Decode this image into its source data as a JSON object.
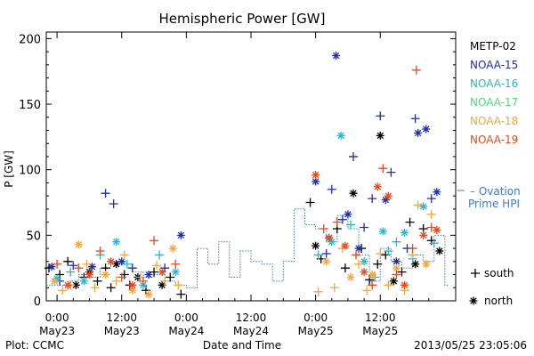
{
  "chart_data": {
    "type": "scatter",
    "title": "Hemispheric Power [GW]",
    "xlabel": "Date and Time",
    "ylabel": "P [GW]",
    "footer_left": "Plot: CCMC",
    "footer_right": "2013/05/25 23:05:06",
    "x_unit": "hours since 2013-05-23 00:00 UT",
    "xlim": [
      -2,
      74
    ],
    "ylim": [
      0,
      205
    ],
    "yticks": [
      0,
      50,
      100,
      150,
      200
    ],
    "xticks": [
      {
        "x": 0,
        "time": "0:00",
        "date": "May23"
      },
      {
        "x": 12,
        "time": "12:00",
        "date": "May23"
      },
      {
        "x": 24,
        "time": "0:00",
        "date": "May24"
      },
      {
        "x": 36,
        "time": "12:00",
        "date": "May24"
      },
      {
        "x": 48,
        "time": "0:00",
        "date": "May25"
      },
      {
        "x": 60,
        "time": "12:00",
        "date": "May25"
      }
    ],
    "series": [
      {
        "name": "METP-02",
        "color": "#000000",
        "points": [
          {
            "x": -1.5,
            "y": 25,
            "h": "s"
          },
          {
            "x": 0.5,
            "y": 20,
            "h": "s"
          },
          {
            "x": 2,
            "y": 30,
            "h": "s"
          },
          {
            "x": 3.5,
            "y": 12,
            "h": "n"
          },
          {
            "x": 5,
            "y": 18,
            "h": "s"
          },
          {
            "x": 6,
            "y": 22,
            "h": "n"
          },
          {
            "x": 7.5,
            "y": 15,
            "h": "s"
          },
          {
            "x": 9,
            "y": 25,
            "h": "s"
          },
          {
            "x": 10,
            "y": 10,
            "h": "s"
          },
          {
            "x": 11,
            "y": 28,
            "h": "n"
          },
          {
            "x": 12.5,
            "y": 20,
            "h": "s"
          },
          {
            "x": 13.5,
            "y": 12,
            "h": "s"
          },
          {
            "x": 15,
            "y": 18,
            "h": "n"
          },
          {
            "x": 16.5,
            "y": 8,
            "h": "s"
          },
          {
            "x": 18,
            "y": 22,
            "h": "s"
          },
          {
            "x": 19.5,
            "y": 12,
            "h": "n"
          },
          {
            "x": 21,
            "y": 18,
            "h": "s"
          },
          {
            "x": 23,
            "y": 5,
            "h": "s"
          },
          {
            "x": 47,
            "y": 75,
            "h": "s"
          },
          {
            "x": 48,
            "y": 42,
            "h": "n"
          },
          {
            "x": 49,
            "y": 32,
            "h": "s"
          },
          {
            "x": 50.5,
            "y": 48,
            "h": "n"
          },
          {
            "x": 52,
            "y": 55,
            "h": "s"
          },
          {
            "x": 53.5,
            "y": 25,
            "h": "s"
          },
          {
            "x": 55,
            "y": 82,
            "h": "n"
          },
          {
            "x": 56.5,
            "y": 40,
            "h": "s"
          },
          {
            "x": 58,
            "y": 16,
            "h": "s"
          },
          {
            "x": 59.5,
            "y": 28,
            "h": "s"
          },
          {
            "x": 60,
            "y": 126,
            "h": "n"
          },
          {
            "x": 61,
            "y": 35,
            "h": "s"
          },
          {
            "x": 62.5,
            "y": 15,
            "h": "n"
          },
          {
            "x": 64,
            "y": 22,
            "h": "s"
          },
          {
            "x": 65.5,
            "y": 60,
            "h": "s"
          },
          {
            "x": 66.5,
            "y": 28,
            "h": "n"
          },
          {
            "x": 68,
            "y": 55,
            "h": "s"
          },
          {
            "x": 69.5,
            "y": 46,
            "h": "s"
          },
          {
            "x": 71,
            "y": 38,
            "h": "n"
          }
        ]
      },
      {
        "name": "NOAA-15",
        "color": "#1f2db0",
        "points": [
          {
            "x": -1,
            "y": 26,
            "h": "n"
          },
          {
            "x": 0.5,
            "y": 15,
            "h": "s"
          },
          {
            "x": 3,
            "y": 27,
            "h": "s"
          },
          {
            "x": 6.5,
            "y": 26,
            "h": "n"
          },
          {
            "x": 9,
            "y": 82,
            "h": "s"
          },
          {
            "x": 10.5,
            "y": 74,
            "h": "s"
          },
          {
            "x": 12,
            "y": 30,
            "h": "n"
          },
          {
            "x": 14,
            "y": 25,
            "h": "s"
          },
          {
            "x": 17,
            "y": 20,
            "h": "n"
          },
          {
            "x": 20,
            "y": 25,
            "h": "s"
          },
          {
            "x": 23,
            "y": 50,
            "h": "n"
          },
          {
            "x": 48,
            "y": 91,
            "h": "n"
          },
          {
            "x": 50,
            "y": 36,
            "h": "s"
          },
          {
            "x": 51,
            "y": 85,
            "h": "s"
          },
          {
            "x": 51.8,
            "y": 187,
            "h": "n"
          },
          {
            "x": 53,
            "y": 62,
            "h": "s"
          },
          {
            "x": 54,
            "y": 66,
            "h": "n"
          },
          {
            "x": 55,
            "y": 110,
            "h": "s"
          },
          {
            "x": 56,
            "y": 40,
            "h": "n"
          },
          {
            "x": 57,
            "y": 56,
            "h": "s"
          },
          {
            "x": 58.5,
            "y": 78,
            "h": "s"
          },
          {
            "x": 60,
            "y": 141,
            "h": "s"
          },
          {
            "x": 61,
            "y": 77,
            "h": "n"
          },
          {
            "x": 62,
            "y": 98,
            "h": "s"
          },
          {
            "x": 63,
            "y": 30,
            "h": "n"
          },
          {
            "x": 65,
            "y": 40,
            "h": "s"
          },
          {
            "x": 66.5,
            "y": 139,
            "h": "s"
          },
          {
            "x": 67,
            "y": 128,
            "h": "n"
          },
          {
            "x": 68.5,
            "y": 131,
            "h": "n"
          },
          {
            "x": 69.5,
            "y": 78,
            "h": "s"
          },
          {
            "x": 70.5,
            "y": 83,
            "h": "n"
          }
        ]
      },
      {
        "name": "NOAA-16",
        "color": "#22b8d6",
        "points": [
          {
            "x": 0,
            "y": 17,
            "h": "n"
          },
          {
            "x": 2.5,
            "y": 22,
            "h": "s"
          },
          {
            "x": 5,
            "y": 15,
            "h": "n"
          },
          {
            "x": 8,
            "y": 35,
            "h": "s"
          },
          {
            "x": 11,
            "y": 45,
            "h": "n"
          },
          {
            "x": 13,
            "y": 28,
            "h": "s"
          },
          {
            "x": 16,
            "y": 12,
            "h": "n"
          },
          {
            "x": 19,
            "y": 35,
            "h": "s"
          },
          {
            "x": 22,
            "y": 22,
            "h": "n"
          },
          {
            "x": 48.5,
            "y": 35,
            "h": "s"
          },
          {
            "x": 51,
            "y": 45,
            "h": "n"
          },
          {
            "x": 52.7,
            "y": 126,
            "h": "n"
          },
          {
            "x": 54.5,
            "y": 58,
            "h": "s"
          },
          {
            "x": 57,
            "y": 30,
            "h": "n"
          },
          {
            "x": 59,
            "y": 18,
            "h": "s"
          },
          {
            "x": 60.5,
            "y": 53,
            "h": "n"
          },
          {
            "x": 61.5,
            "y": 38,
            "h": "s"
          },
          {
            "x": 63,
            "y": 45,
            "h": "s"
          },
          {
            "x": 64.5,
            "y": 52,
            "h": "n"
          },
          {
            "x": 66,
            "y": 32,
            "h": "s"
          },
          {
            "x": 68,
            "y": 72,
            "h": "n"
          },
          {
            "x": 70,
            "y": 44,
            "h": "s"
          }
        ]
      },
      {
        "name": "NOAA-17",
        "color": "#4be07d",
        "points": []
      },
      {
        "name": "NOAA-18",
        "color": "#f5a640",
        "points": [
          {
            "x": -0.5,
            "y": 15,
            "h": "n"
          },
          {
            "x": 1,
            "y": 8,
            "h": "s"
          },
          {
            "x": 2.5,
            "y": 12,
            "h": "s"
          },
          {
            "x": 4,
            "y": 43,
            "h": "n"
          },
          {
            "x": 5.5,
            "y": 28,
            "h": "s"
          },
          {
            "x": 7,
            "y": 10,
            "h": "s"
          },
          {
            "x": 9,
            "y": 20,
            "h": "n"
          },
          {
            "x": 11,
            "y": 15,
            "h": "s"
          },
          {
            "x": 12.5,
            "y": 35,
            "h": "s"
          },
          {
            "x": 14,
            "y": 8,
            "h": "n"
          },
          {
            "x": 15.5,
            "y": 18,
            "h": "s"
          },
          {
            "x": 17,
            "y": 5,
            "h": "n"
          },
          {
            "x": 18.5,
            "y": 27,
            "h": "s"
          },
          {
            "x": 20,
            "y": 15,
            "h": "s"
          },
          {
            "x": 21.5,
            "y": 40,
            "h": "n"
          },
          {
            "x": 22.5,
            "y": 12,
            "h": "s"
          },
          {
            "x": 48.5,
            "y": 7,
            "h": "s"
          },
          {
            "x": 50,
            "y": 30,
            "h": "n"
          },
          {
            "x": 51.5,
            "y": 10,
            "h": "s"
          },
          {
            "x": 53,
            "y": 40,
            "h": "s"
          },
          {
            "x": 54.5,
            "y": 18,
            "h": "n"
          },
          {
            "x": 56,
            "y": 28,
            "h": "s"
          },
          {
            "x": 57.5,
            "y": 8,
            "h": "s"
          },
          {
            "x": 58.5,
            "y": 20,
            "h": "n"
          },
          {
            "x": 60,
            "y": 36,
            "h": "s"
          },
          {
            "x": 61.5,
            "y": 12,
            "h": "s"
          },
          {
            "x": 63,
            "y": 25,
            "h": "n"
          },
          {
            "x": 64.5,
            "y": 8,
            "h": "s"
          },
          {
            "x": 66,
            "y": 35,
            "h": "s"
          },
          {
            "x": 67,
            "y": 73,
            "h": "s"
          },
          {
            "x": 68.5,
            "y": 28,
            "h": "n"
          },
          {
            "x": 69.5,
            "y": 66,
            "h": "s"
          }
        ]
      },
      {
        "name": "NOAA-19",
        "color": "#e8481e",
        "points": [
          {
            "x": 0,
            "y": 28,
            "h": "s"
          },
          {
            "x": 2,
            "y": 12,
            "h": "n"
          },
          {
            "x": 4,
            "y": 25,
            "h": "s"
          },
          {
            "x": 6,
            "y": 20,
            "h": "n"
          },
          {
            "x": 8,
            "y": 38,
            "h": "s"
          },
          {
            "x": 10,
            "y": 30,
            "h": "n"
          },
          {
            "x": 12,
            "y": 18,
            "h": "s"
          },
          {
            "x": 14,
            "y": 12,
            "h": "n"
          },
          {
            "x": 16,
            "y": 15,
            "h": "s"
          },
          {
            "x": 18,
            "y": 46,
            "h": "s"
          },
          {
            "x": 19.5,
            "y": 22,
            "h": "n"
          },
          {
            "x": 22,
            "y": 28,
            "h": "s"
          },
          {
            "x": 48,
            "y": 96,
            "h": "n"
          },
          {
            "x": 49.5,
            "y": 55,
            "h": "s"
          },
          {
            "x": 50.5,
            "y": 48,
            "h": "n"
          },
          {
            "x": 52,
            "y": 60,
            "h": "s"
          },
          {
            "x": 53.5,
            "y": 42,
            "h": "n"
          },
          {
            "x": 55.5,
            "y": 35,
            "h": "s"
          },
          {
            "x": 57,
            "y": 22,
            "h": "n"
          },
          {
            "x": 58.5,
            "y": 12,
            "h": "s"
          },
          {
            "x": 59.5,
            "y": 87,
            "h": "n"
          },
          {
            "x": 60.5,
            "y": 101,
            "h": "s"
          },
          {
            "x": 61.5,
            "y": 80,
            "h": "n"
          },
          {
            "x": 63,
            "y": 20,
            "h": "s"
          },
          {
            "x": 64.5,
            "y": 12,
            "h": "n"
          },
          {
            "x": 66,
            "y": 40,
            "h": "s"
          },
          {
            "x": 66.7,
            "y": 176,
            "h": "s"
          },
          {
            "x": 68,
            "y": 50,
            "h": "n"
          },
          {
            "x": 69.5,
            "y": 56,
            "h": "s"
          },
          {
            "x": 70.5,
            "y": 54,
            "h": "n"
          }
        ]
      }
    ],
    "model": {
      "name": "Ovation Prime HPI",
      "label_line1": "– Ovation",
      "label_line2": "Prime HPI",
      "color": "#3a7bd5",
      "x": [
        -2,
        2,
        4,
        6,
        8,
        10,
        12,
        14,
        16,
        18,
        20,
        22,
        24,
        26,
        28,
        30,
        32,
        34,
        36,
        38,
        40,
        42,
        44,
        46,
        48,
        50,
        52,
        54,
        56,
        58,
        60,
        62,
        64,
        66,
        68,
        70,
        72
      ],
      "y": [
        12,
        15,
        20,
        18,
        25,
        30,
        28,
        22,
        18,
        20,
        15,
        12,
        10,
        40,
        28,
        45,
        18,
        38,
        30,
        28,
        15,
        30,
        70,
        58,
        55,
        45,
        65,
        55,
        35,
        15,
        40,
        30,
        25,
        35,
        30,
        50,
        12
      ]
    },
    "legend": {
      "placement": "right",
      "south_label": "south",
      "north_label": "north"
    }
  }
}
